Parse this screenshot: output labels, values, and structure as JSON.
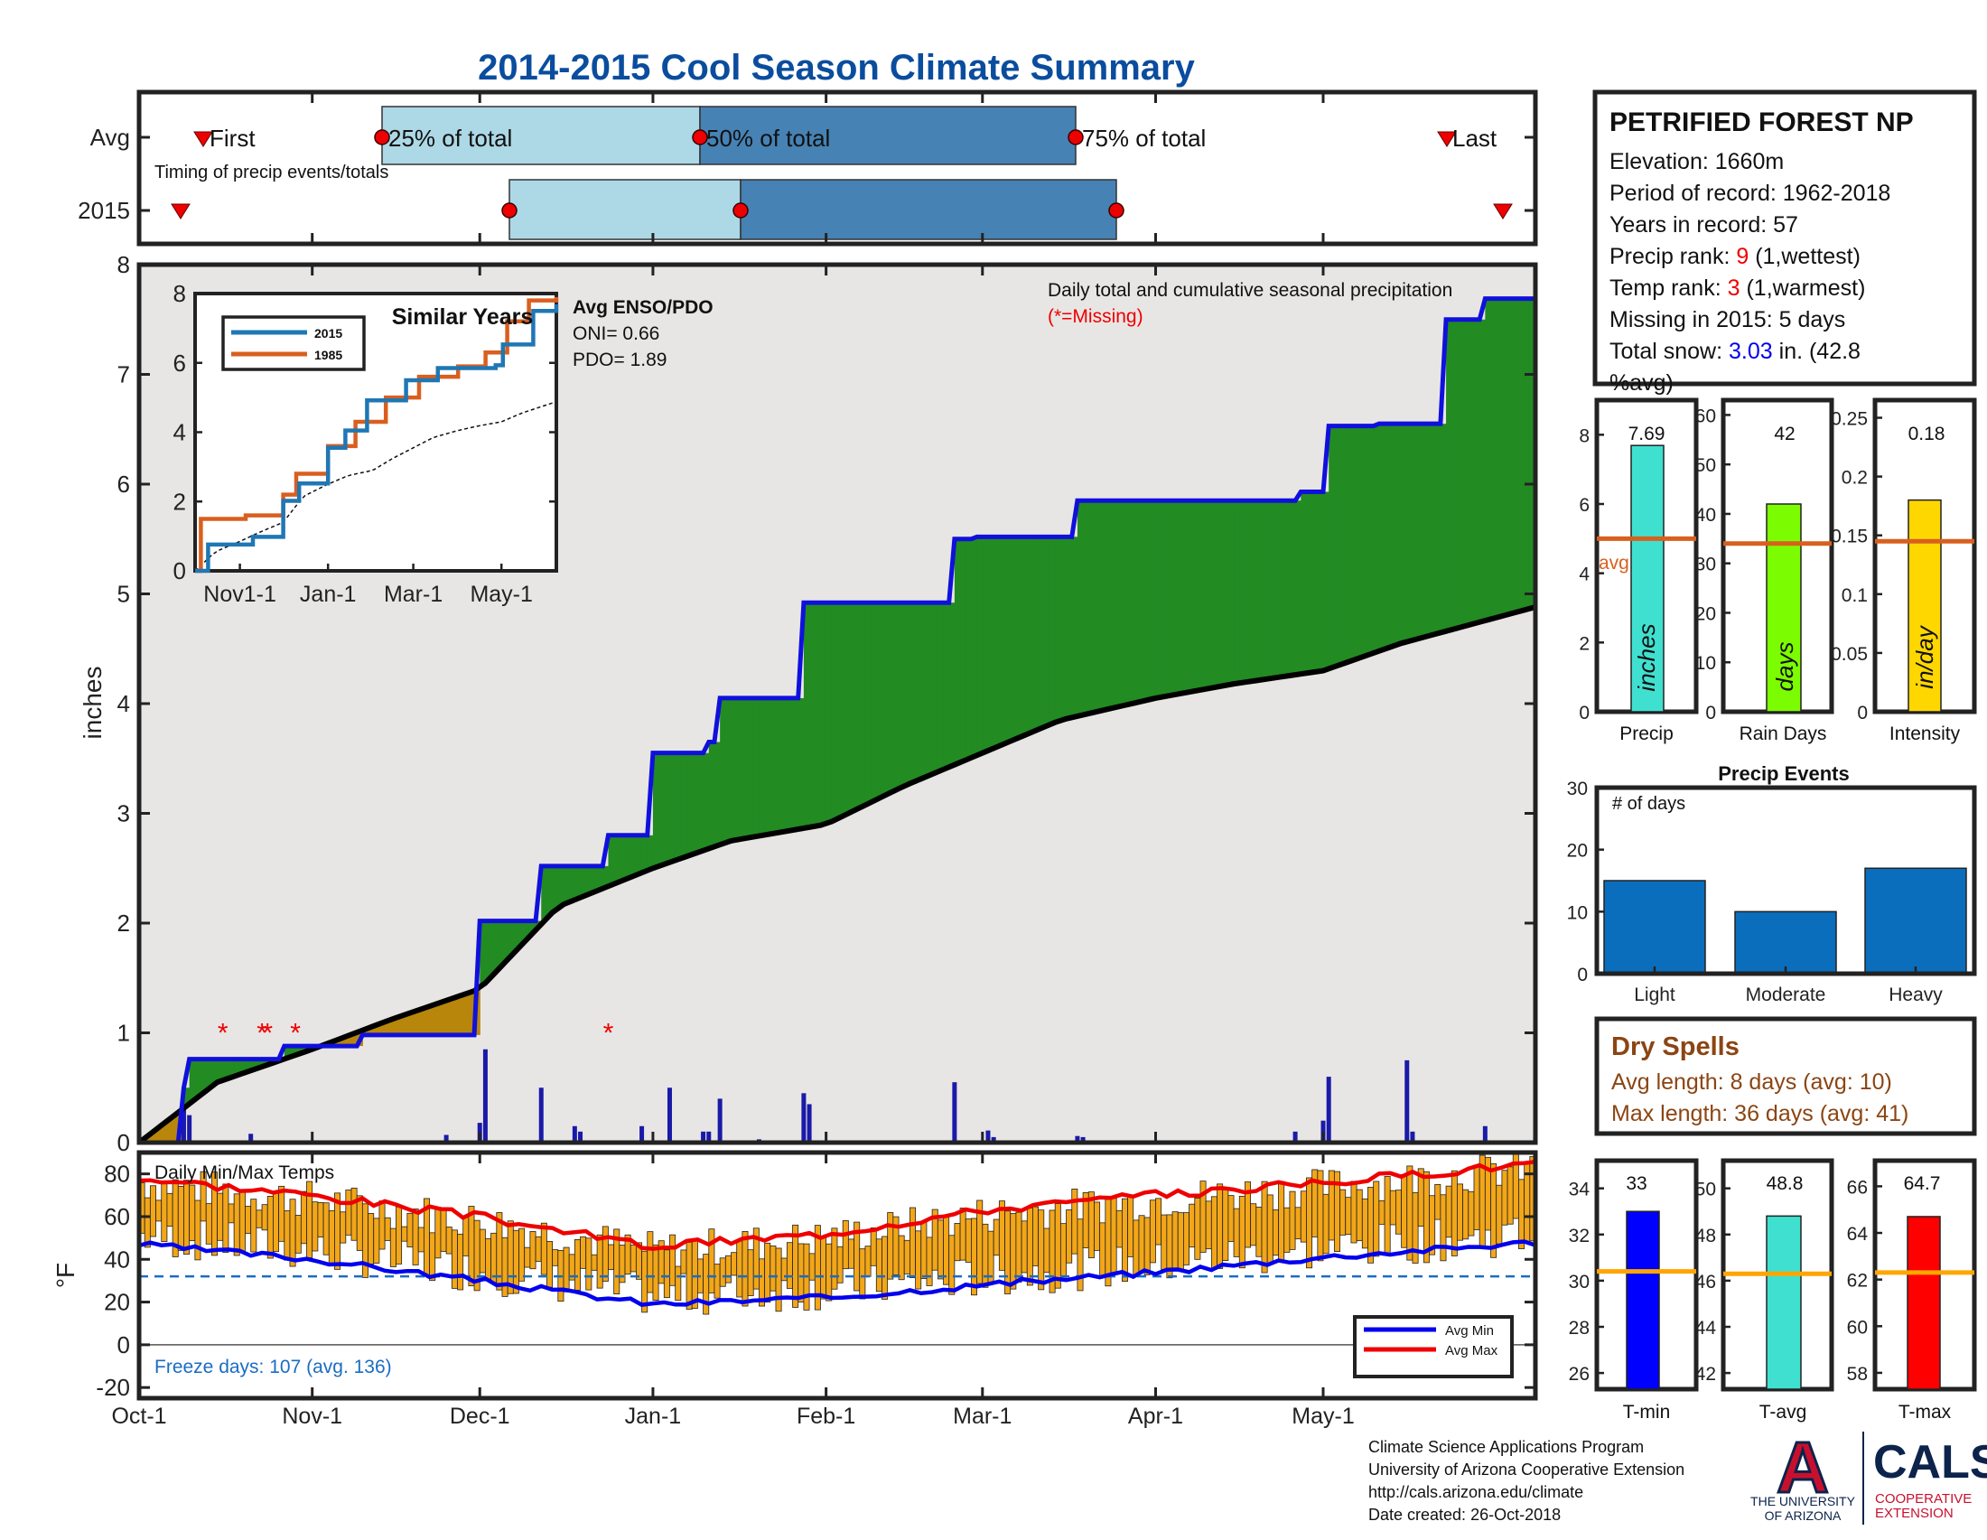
{
  "title": "2014-2015 Cool Season Climate Summary",
  "timing": {
    "row_avg": "Avg",
    "row_year": "2015",
    "first": "First",
    "p25": "25% of total",
    "p50": "50% of total",
    "p75": "75% of total",
    "last": "Last",
    "caption": "Timing of precip events/totals"
  },
  "main": {
    "ylabel": "inches",
    "yticks": [
      "0",
      "1",
      "2",
      "3",
      "4",
      "5",
      "6",
      "7",
      "8"
    ],
    "xticks": [
      "Oct-1",
      "Nov-1",
      "Dec-1",
      "Jan-1",
      "Feb-1",
      "Mar-1",
      "Apr-1",
      "May-1"
    ],
    "header_line1": "Daily total and cumulative seasonal precipitation",
    "header_line2": "(*=Missing)",
    "missing_marker": "*"
  },
  "inset": {
    "title": "Similar Years",
    "legend": [
      "2015",
      "1985"
    ],
    "yticks": [
      "0",
      "2",
      "4",
      "6",
      "8"
    ],
    "xticks": [
      "Nov1-1",
      "Jan-1",
      "Mar-1",
      "May-1"
    ],
    "enso_title": "Avg ENSO/PDO",
    "oni": "ONI= 0.66",
    "pdo": "PDO= 1.89"
  },
  "station": {
    "name": "PETRIFIED FOREST NP",
    "elevation": "Elevation: 1660m",
    "period": "Period of record: 1962-2018",
    "years": "Years in record: 57",
    "precip_rank_pre": "Precip rank: ",
    "precip_rank_val": "9",
    "precip_rank_post": " (1,wettest)",
    "temp_rank_pre": "Temp rank: ",
    "temp_rank_val": "3",
    "temp_rank_post": " (1,warmest)",
    "missing": "Missing in 2015: 5 days",
    "snow_pre": "Total snow: ",
    "snow_val": "3.03",
    "snow_post": " in. (42.8",
    "snow_line2": "%avg)"
  },
  "stats": {
    "avg_label": "avg",
    "precip": {
      "value": "7.69",
      "unit": "inches",
      "label": "Precip",
      "yticks": [
        "0",
        "2",
        "4",
        "6",
        "8"
      ]
    },
    "raindays": {
      "value": "42",
      "unit": "days",
      "label": "Rain Days",
      "yticks": [
        "0",
        "10",
        "20",
        "30",
        "40",
        "50",
        "60"
      ]
    },
    "intensity": {
      "value": "0.18",
      "unit": "in/day",
      "label": "Intensity",
      "yticks": [
        "0",
        "0.05",
        "0.1",
        "0.15",
        "0.2",
        "0.25"
      ]
    }
  },
  "events": {
    "title": "Precip Events",
    "note": "# of days",
    "yticks": [
      "0",
      "10",
      "20",
      "30"
    ],
    "labels": [
      "Light",
      "Moderate",
      "Heavy"
    ]
  },
  "dry": {
    "title": "Dry Spells",
    "avg": "Avg length: 8 days (avg: 10)",
    "max": "Max length: 36 days (avg: 41)"
  },
  "temps": {
    "title": "Daily Min/Max Temps",
    "ylabel": "°F",
    "yticks": [
      "-20",
      "0",
      "20",
      "40",
      "60",
      "80"
    ],
    "freeze": "Freeze days: 107 (avg. 136)",
    "legend_min": "Avg Min",
    "legend_max": "Avg Max"
  },
  "tstats": {
    "tmin": {
      "value": "33",
      "label": "T-min",
      "yticks": [
        "26",
        "28",
        "30",
        "32",
        "34"
      ]
    },
    "tavg": {
      "value": "48.8",
      "label": "T-avg",
      "yticks": [
        "42",
        "44",
        "46",
        "48",
        "50"
      ]
    },
    "tmax": {
      "value": "64.7",
      "label": "T-max",
      "yticks": [
        "58",
        "60",
        "62",
        "64",
        "66"
      ]
    }
  },
  "footer": {
    "line1": "Climate Science Applications Program",
    "line2": "University of Arizona Cooperative Extension",
    "line3": "http://cals.arizona.edu/climate",
    "line4": " Date created: 26-Oct-2018"
  },
  "logo": {
    "ua_letter": "A",
    "ua_line1": "THE UNIVERSITY",
    "ua_line2": "OF ARIZONA",
    "cals": "CALS",
    "coop1": "COOPERATIVE",
    "coop2": "EXTENSION"
  },
  "chart_data": [
    {
      "type": "area",
      "title": "Daily total and cumulative seasonal precipitation",
      "ylabel": "inches",
      "ylim": [
        0,
        8
      ],
      "x_unit": "date",
      "xlim": [
        "2014-10-01",
        "2015-06-08"
      ],
      "colors": {
        "cumulative_2015": "#1010dd",
        "average": "#000000",
        "above_avg": "#228b22",
        "below_avg": "#b8860b",
        "background": "#e8e6e4",
        "daily_bars": "#1a1aa8"
      },
      "series": [
        {
          "name": "2015",
          "x": [
            "2014-10-01",
            "2014-10-08",
            "2014-10-09",
            "2014-10-10",
            "2014-10-26",
            "2014-10-27",
            "2014-11-09",
            "2014-11-10",
            "2014-11-30",
            "2014-12-01",
            "2014-12-11",
            "2014-12-12",
            "2014-12-23",
            "2014-12-24",
            "2014-12-31",
            "2015-01-01",
            "2015-01-10",
            "2015-01-11",
            "2015-01-12",
            "2015-01-13",
            "2015-01-27",
            "2015-01-28",
            "2015-02-23",
            "2015-02-24",
            "2015-02-27",
            "2015-02-28",
            "2015-03-17",
            "2015-03-18",
            "2015-04-26",
            "2015-04-27",
            "2015-05-01",
            "2015-05-02",
            "2015-05-10",
            "2015-05-11",
            "2015-05-22",
            "2015-05-23",
            "2015-05-29",
            "2015-05-30",
            "2015-06-08"
          ],
          "values": [
            0.0,
            0.0,
            0.5,
            0.76,
            0.76,
            0.88,
            0.88,
            0.98,
            0.98,
            2.02,
            2.02,
            2.52,
            2.52,
            2.8,
            2.8,
            3.55,
            3.55,
            3.65,
            3.65,
            4.05,
            4.05,
            4.92,
            4.92,
            5.5,
            5.5,
            5.52,
            5.52,
            5.85,
            5.85,
            5.93,
            5.93,
            6.53,
            6.53,
            6.55,
            6.55,
            7.5,
            7.5,
            7.69,
            7.69
          ]
        },
        {
          "name": "Average",
          "x": [
            "2014-10-01",
            "2014-10-15",
            "2014-11-01",
            "2014-11-15",
            "2014-12-01",
            "2014-12-15",
            "2015-01-01",
            "2015-01-15",
            "2015-02-01",
            "2015-02-15",
            "2015-03-01",
            "2015-03-15",
            "2015-04-01",
            "2015-04-15",
            "2015-05-01",
            "2015-05-15",
            "2015-06-08"
          ],
          "values": [
            0.0,
            0.55,
            0.85,
            1.12,
            1.4,
            2.15,
            2.5,
            2.75,
            2.9,
            3.25,
            3.55,
            3.85,
            4.05,
            4.18,
            4.3,
            4.55,
            4.88
          ]
        },
        {
          "name": "Daily",
          "x": [
            "2014-10-09",
            "2014-10-10",
            "2014-10-21",
            "2014-11-25",
            "2014-12-01",
            "2014-12-02",
            "2014-12-12",
            "2014-12-18",
            "2014-12-19",
            "2014-12-21",
            "2014-12-30",
            "2015-01-04",
            "2015-01-10",
            "2015-01-11",
            "2015-01-12",
            "2015-01-13",
            "2015-01-20",
            "2015-01-28",
            "2015-01-29",
            "2015-02-24",
            "2015-03-02",
            "2015-03-03",
            "2015-03-18",
            "2015-03-19",
            "2015-04-26",
            "2015-05-01",
            "2015-05-02",
            "2015-05-16",
            "2015-05-17",
            "2015-05-30"
          ],
          "values": [
            0.3,
            0.25,
            0.08,
            0.07,
            0.18,
            0.85,
            0.5,
            0.15,
            0.1,
            0.02,
            0.15,
            0.5,
            0.1,
            0.1,
            0.02,
            0.4,
            0.03,
            0.45,
            0.35,
            0.55,
            0.11,
            0.05,
            0.06,
            0.05,
            0.1,
            0.2,
            0.6,
            0.75,
            0.1,
            0.15
          ]
        }
      ],
      "missing_days": [
        "2014-10-16",
        "2014-10-23",
        "2014-10-24",
        "2014-10-29",
        "2014-12-24"
      ]
    },
    {
      "type": "line",
      "title": "Similar Years",
      "ylim": [
        0,
        8
      ],
      "series": [
        {
          "name": "2015",
          "x": [
            "2014-10-01",
            "2014-10-10",
            "2014-11-10",
            "2014-12-01",
            "2014-12-12",
            "2015-01-01",
            "2015-01-13",
            "2015-01-28",
            "2015-02-24",
            "2015-03-18",
            "2015-04-27",
            "2015-05-02",
            "2015-05-23",
            "2015-06-08"
          ],
          "values": [
            0.0,
            0.76,
            0.98,
            2.02,
            2.52,
            3.55,
            4.05,
            4.92,
            5.5,
            5.85,
            5.93,
            6.53,
            7.5,
            7.69
          ]
        },
        {
          "name": "1985",
          "x": [
            "2014-10-01",
            "2014-10-05",
            "2014-11-05",
            "2014-12-01",
            "2014-12-10",
            "2015-01-01",
            "2015-01-20",
            "2015-02-10",
            "2015-03-05",
            "2015-04-01",
            "2015-04-20",
            "2015-05-05",
            "2015-05-20",
            "2015-06-08"
          ],
          "values": [
            0.0,
            1.5,
            1.6,
            2.2,
            2.8,
            3.6,
            4.3,
            5.0,
            5.6,
            5.9,
            6.3,
            7.2,
            7.8,
            7.9
          ]
        }
      ]
    },
    {
      "type": "bar",
      "title": "Precip",
      "categories": [
        "Precip"
      ],
      "values": [
        7.69
      ],
      "avg": 5.0,
      "ylim": [
        0,
        9
      ]
    },
    {
      "type": "bar",
      "title": "Rain Days",
      "categories": [
        "Rain Days"
      ],
      "values": [
        42
      ],
      "avg": 34,
      "ylim": [
        0,
        63
      ]
    },
    {
      "type": "bar",
      "title": "Intensity",
      "categories": [
        "Intensity"
      ],
      "values": [
        0.18
      ],
      "avg": 0.145,
      "ylim": [
        0,
        0.265
      ]
    },
    {
      "type": "bar",
      "title": "Precip Events",
      "categories": [
        "Light",
        "Moderate",
        "Heavy"
      ],
      "values": [
        15,
        10,
        17
      ],
      "ylim": [
        0,
        30
      ]
    },
    {
      "type": "bar",
      "title": "Daily Min/Max Temps",
      "ylabel": "°F",
      "ylim": [
        -25,
        90
      ],
      "avg_min": {
        "x": [
          "2014-10-01",
          "2014-11-01",
          "2014-12-01",
          "2015-01-01",
          "2015-02-01",
          "2015-03-01",
          "2015-04-01",
          "2015-05-01",
          "2015-06-08"
        ],
        "values": [
          47,
          40,
          30,
          19,
          22,
          28,
          34,
          41,
          48
        ]
      },
      "avg_max": {
        "x": [
          "2014-10-01",
          "2014-11-01",
          "2014-12-01",
          "2015-01-01",
          "2015-02-01",
          "2015-03-01",
          "2015-04-01",
          "2015-05-01",
          "2015-06-08"
        ],
        "values": [
          78,
          70,
          60,
          46,
          52,
          63,
          70,
          76,
          85
        ]
      },
      "freeze_line": 32
    },
    {
      "type": "bar",
      "title": "T-min",
      "categories": [
        "T-min"
      ],
      "values": [
        33
      ],
      "avg": 30.4,
      "ylim": [
        25.3,
        35.2
      ]
    },
    {
      "type": "bar",
      "title": "T-avg",
      "categories": [
        "T-avg"
      ],
      "values": [
        48.8
      ],
      "avg": 46.3,
      "ylim": [
        41.3,
        51.2
      ]
    },
    {
      "type": "bar",
      "title": "T-max",
      "categories": [
        "T-max"
      ],
      "values": [
        64.7
      ],
      "avg": 62.3,
      "ylim": [
        57.3,
        67.1
      ]
    }
  ]
}
